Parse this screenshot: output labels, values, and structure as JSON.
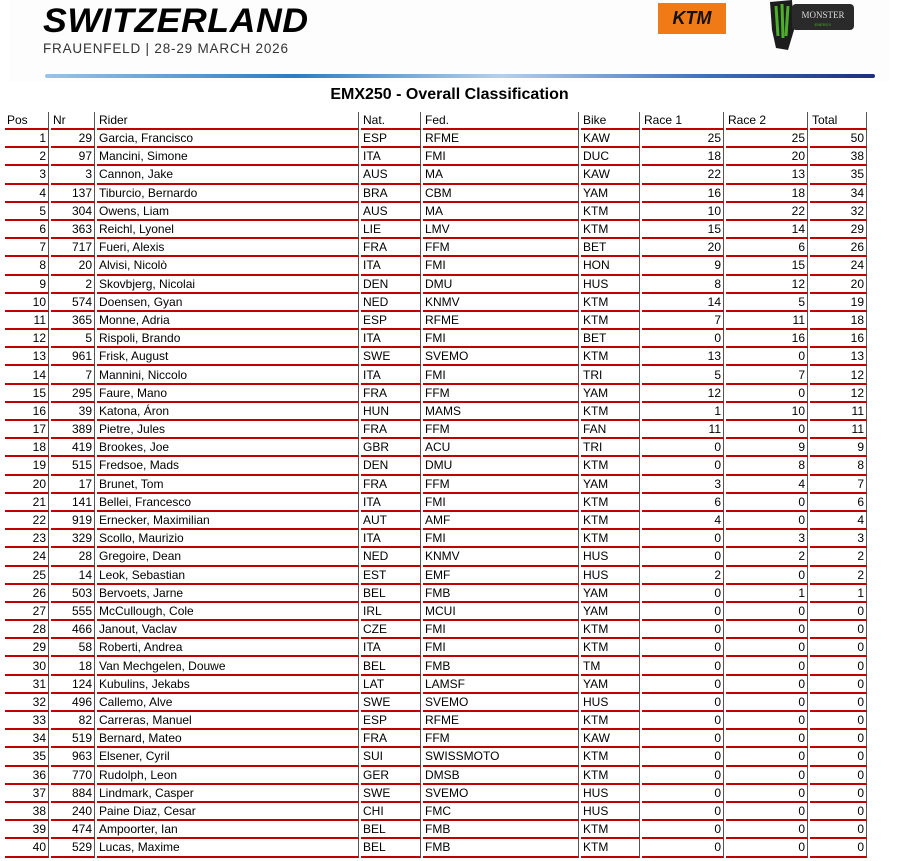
{
  "header": {
    "country": "SWITZERLAND",
    "event": "FRAUENFELD | 28-29 MARCH 2026",
    "sponsor1": "KTM",
    "sponsor2": "MONSTER ENERGY"
  },
  "title": "EMX250 - Overall Classification",
  "columns": [
    "Pos",
    "Nr",
    "Rider",
    "Nat.",
    "Fed.",
    "Bike",
    "Race 1",
    "Race 2",
    "Total"
  ],
  "rows": [
    [
      "1",
      "29",
      "Garcia, Francisco",
      "ESP",
      "RFME",
      "KAW",
      "25",
      "25",
      "50"
    ],
    [
      "2",
      "97",
      "Mancini, Simone",
      "ITA",
      "FMI",
      "DUC",
      "18",
      "20",
      "38"
    ],
    [
      "3",
      "3",
      "Cannon, Jake",
      "AUS",
      "MA",
      "KAW",
      "22",
      "13",
      "35"
    ],
    [
      "4",
      "137",
      "Tiburcio, Bernardo",
      "BRA",
      "CBM",
      "YAM",
      "16",
      "18",
      "34"
    ],
    [
      "5",
      "304",
      "Owens, Liam",
      "AUS",
      "MA",
      "KTM",
      "10",
      "22",
      "32"
    ],
    [
      "6",
      "363",
      "Reichl, Lyonel",
      "LIE",
      "LMV",
      "KTM",
      "15",
      "14",
      "29"
    ],
    [
      "7",
      "717",
      "Fueri, Alexis",
      "FRA",
      "FFM",
      "BET",
      "20",
      "6",
      "26"
    ],
    [
      "8",
      "20",
      "Alvisi, Nicolò",
      "ITA",
      "FMI",
      "HON",
      "9",
      "15",
      "24"
    ],
    [
      "9",
      "2",
      "Skovbjerg, Nicolai",
      "DEN",
      "DMU",
      "HUS",
      "8",
      "12",
      "20"
    ],
    [
      "10",
      "574",
      "Doensen, Gyan",
      "NED",
      "KNMV",
      "KTM",
      "14",
      "5",
      "19"
    ],
    [
      "11",
      "365",
      "Monne, Adria",
      "ESP",
      "RFME",
      "KTM",
      "7",
      "11",
      "18"
    ],
    [
      "12",
      "5",
      "Rispoli, Brando",
      "ITA",
      "FMI",
      "BET",
      "0",
      "16",
      "16"
    ],
    [
      "13",
      "961",
      "Frisk, August",
      "SWE",
      "SVEMO",
      "KTM",
      "13",
      "0",
      "13"
    ],
    [
      "14",
      "7",
      "Mannini, Niccolo",
      "ITA",
      "FMI",
      "TRI",
      "5",
      "7",
      "12"
    ],
    [
      "15",
      "295",
      "Faure, Mano",
      "FRA",
      "FFM",
      "YAM",
      "12",
      "0",
      "12"
    ],
    [
      "16",
      "39",
      "Katona, Áron",
      "HUN",
      "MAMS",
      "KTM",
      "1",
      "10",
      "11"
    ],
    [
      "17",
      "389",
      "Pietre, Jules",
      "FRA",
      "FFM",
      "FAN",
      "11",
      "0",
      "11"
    ],
    [
      "18",
      "419",
      "Brookes, Joe",
      "GBR",
      "ACU",
      "TRI",
      "0",
      "9",
      "9"
    ],
    [
      "19",
      "515",
      "Fredsoe, Mads",
      "DEN",
      "DMU",
      "KTM",
      "0",
      "8",
      "8"
    ],
    [
      "20",
      "17",
      "Brunet, Tom",
      "FRA",
      "FFM",
      "YAM",
      "3",
      "4",
      "7"
    ],
    [
      "21",
      "141",
      "Bellei, Francesco",
      "ITA",
      "FMI",
      "KTM",
      "6",
      "0",
      "6"
    ],
    [
      "22",
      "919",
      "Ernecker, Maximilian",
      "AUT",
      "AMF",
      "KTM",
      "4",
      "0",
      "4"
    ],
    [
      "23",
      "329",
      "Scollo, Maurizio",
      "ITA",
      "FMI",
      "KTM",
      "0",
      "3",
      "3"
    ],
    [
      "24",
      "28",
      "Gregoire, Dean",
      "NED",
      "KNMV",
      "HUS",
      "0",
      "2",
      "2"
    ],
    [
      "25",
      "14",
      "Leok, Sebastian",
      "EST",
      "EMF",
      "HUS",
      "2",
      "0",
      "2"
    ],
    [
      "26",
      "503",
      "Bervoets, Jarne",
      "BEL",
      "FMB",
      "YAM",
      "0",
      "1",
      "1"
    ],
    [
      "27",
      "555",
      "McCullough, Cole",
      "IRL",
      "MCUI",
      "YAM",
      "0",
      "0",
      "0"
    ],
    [
      "28",
      "466",
      "Janout, Vaclav",
      "CZE",
      "FMI",
      "KTM",
      "0",
      "0",
      "0"
    ],
    [
      "29",
      "58",
      "Roberti, Andrea",
      "ITA",
      "FMI",
      "KTM",
      "0",
      "0",
      "0"
    ],
    [
      "30",
      "18",
      "Van Mechgelen, Douwe",
      "BEL",
      "FMB",
      "TM",
      "0",
      "0",
      "0"
    ],
    [
      "31",
      "124",
      "Kubulins, Jekabs",
      "LAT",
      "LAMSF",
      "YAM",
      "0",
      "0",
      "0"
    ],
    [
      "32",
      "496",
      "Callemo, Alve",
      "SWE",
      "SVEMO",
      "HUS",
      "0",
      "0",
      "0"
    ],
    [
      "33",
      "82",
      "Carreras, Manuel",
      "ESP",
      "RFME",
      "KTM",
      "0",
      "0",
      "0"
    ],
    [
      "34",
      "519",
      "Bernard, Mateo",
      "FRA",
      "FFM",
      "KAW",
      "0",
      "0",
      "0"
    ],
    [
      "35",
      "963",
      "Elsener, Cyril",
      "SUI",
      "SWISSMOTO",
      "KTM",
      "0",
      "0",
      "0"
    ],
    [
      "36",
      "770",
      "Rudolph, Leon",
      "GER",
      "DMSB",
      "KTM",
      "0",
      "0",
      "0"
    ],
    [
      "37",
      "884",
      "Lindmark, Casper",
      "SWE",
      "SVEMO",
      "HUS",
      "0",
      "0",
      "0"
    ],
    [
      "38",
      "240",
      "Paine Diaz, Cesar",
      "CHI",
      "FMC",
      "HUS",
      "0",
      "0",
      "0"
    ],
    [
      "39",
      "474",
      "Ampoorter, Ian",
      "BEL",
      "FMB",
      "KTM",
      "0",
      "0",
      "0"
    ],
    [
      "40",
      "529",
      "Lucas, Maxime",
      "BEL",
      "FMB",
      "KTM",
      "0",
      "0",
      "0"
    ]
  ],
  "colors": {
    "row_border": "#c00000",
    "ktm": "#f07a16",
    "monster_green": "#4caf2a"
  }
}
